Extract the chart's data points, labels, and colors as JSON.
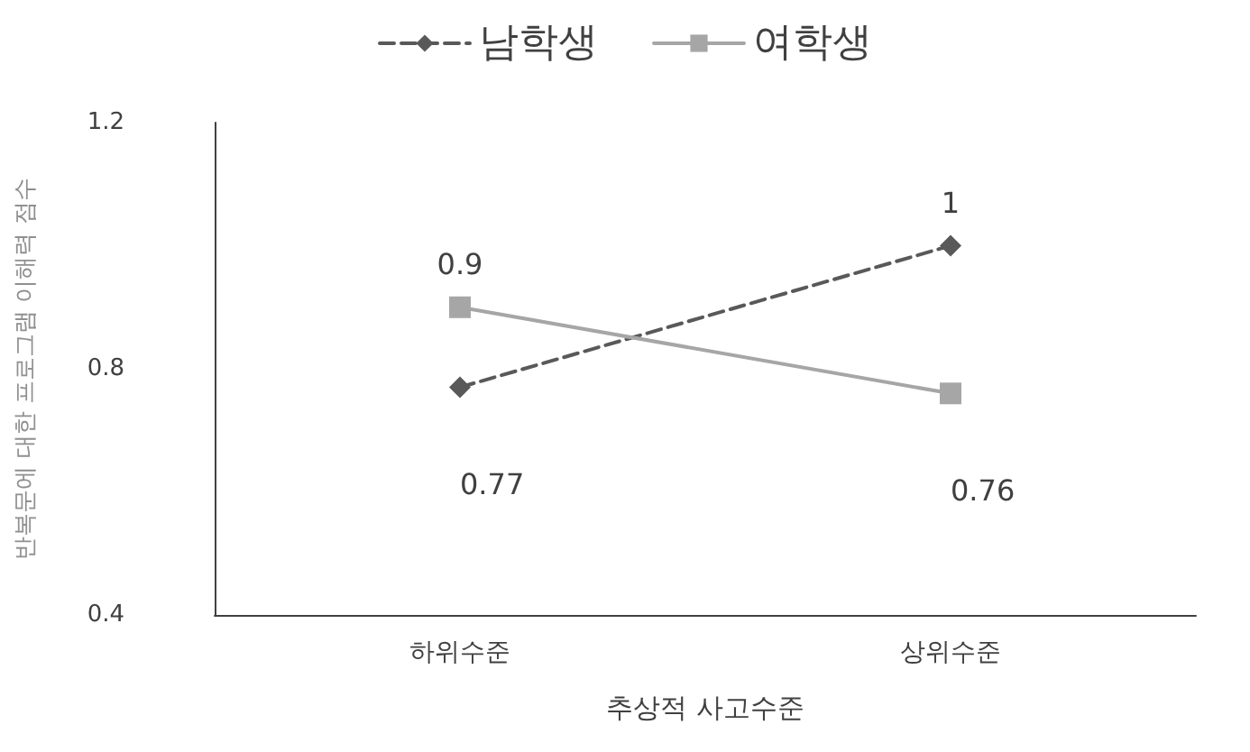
{
  "chart_data": {
    "type": "line",
    "xlabel": "추상적 사고수준",
    "ylabel": "반복문에 대한 프로그램 이해력 점수",
    "categories": [
      "하위수준",
      "상위수준"
    ],
    "series": [
      {
        "name": "남학생",
        "color": "#595959",
        "values": [
          0.77,
          1
        ],
        "marker": "diamond",
        "line_style": "dashed"
      },
      {
        "name": "여학생",
        "color": "#a6a6a6",
        "values": [
          0.9,
          0.76
        ],
        "marker": "square",
        "line_style": "solid"
      }
    ],
    "ylim": [
      0.4,
      1.2
    ],
    "yticks": [
      0.4,
      0.8,
      1.2
    ],
    "grid": false,
    "legend": "top",
    "data_labels": true
  }
}
